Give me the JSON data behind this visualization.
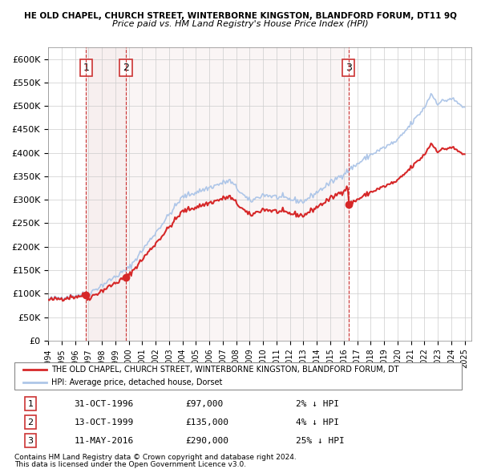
{
  "title_main": "HE OLD CHAPEL, CHURCH STREET, WINTERBORNE KINGSTON, BLANDFORD FORUM, DT11 9Q",
  "title_sub": "Price paid vs. HM Land Registry's House Price Index (HPI)",
  "ylabel": "",
  "ylim": [
    0,
    625000
  ],
  "yticks": [
    0,
    50000,
    100000,
    150000,
    200000,
    250000,
    300000,
    350000,
    400000,
    450000,
    500000,
    550000,
    600000
  ],
  "ytick_labels": [
    "£0",
    "£50K",
    "£100K",
    "£150K",
    "£200K",
    "£250K",
    "£300K",
    "£350K",
    "£400K",
    "£450K",
    "£500K",
    "£550K",
    "£600K"
  ],
  "hpi_color": "#aec6e8",
  "price_color": "#d62728",
  "sale_marker_color": "#d62728",
  "vline_color": "#d44",
  "shade_color": "#e8d0d0",
  "purchases": [
    {
      "label": "1",
      "date_num": 1996.83,
      "price": 97000,
      "date_str": "31-OCT-1996",
      "pct": "2%"
    },
    {
      "label": "2",
      "date_num": 1999.78,
      "price": 135000,
      "date_str": "13-OCT-1999",
      "pct": "4%"
    },
    {
      "label": "3",
      "date_num": 2016.36,
      "price": 290000,
      "date_str": "11-MAY-2016",
      "pct": "25%"
    }
  ],
  "legend_label_price": "THE OLD CHAPEL, CHURCH STREET, WINTERBORNE KINGSTON, BLANDFORD FORUM, DT",
  "legend_label_hpi": "HPI: Average price, detached house, Dorset",
  "footnote1": "Contains HM Land Registry data © Crown copyright and database right 2024.",
  "footnote2": "This data is licensed under the Open Government Licence v3.0.",
  "box_color": "#c00000"
}
